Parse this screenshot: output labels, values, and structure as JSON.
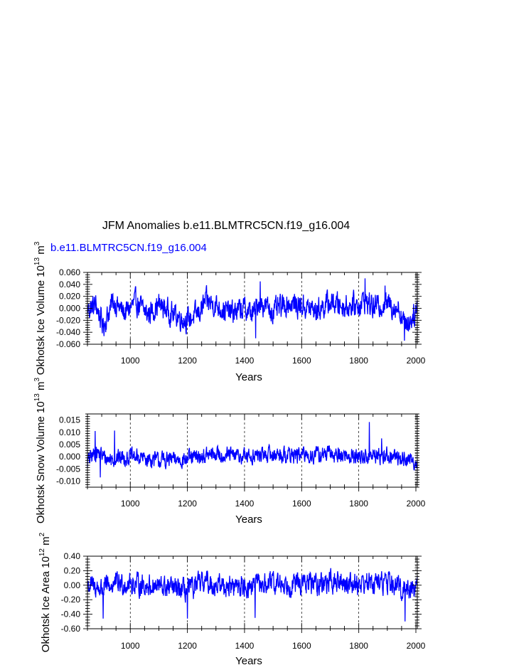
{
  "title": "JFM Anomalies b.e11.BLMTRC5CN.f19_g16.004",
  "series_label": "b.e11.BLMTRC5CN.f19_g16.004",
  "series_color": "#0000ff",
  "chart_data": [
    {
      "type": "line",
      "ylabel": "Okhotsk Ice Volume 10",
      "ylabel_exp": "13",
      "ylabel_unit": "m",
      "ylabel_unit_exp": "3",
      "xlabel": "Years",
      "xlim": [
        850,
        2005
      ],
      "ylim": [
        -0.06,
        0.06
      ],
      "xticks": [
        "1000",
        "1200",
        "1400",
        "1600",
        "1800",
        "2000"
      ],
      "xtick_values": [
        1000,
        1200,
        1400,
        1600,
        1800,
        2000
      ],
      "yticks": [
        "0.060",
        "0.040",
        "0.020",
        "0.000",
        "-0.020",
        "-0.040",
        "-0.060"
      ],
      "ytick_values": [
        0.06,
        0.04,
        0.02,
        0.0,
        -0.02,
        -0.04,
        -0.06
      ],
      "grid": "dashed vertical lines at x ticks",
      "series": [
        {
          "name": "b.e11.BLMTRC5CN.f19_g16.004",
          "x_start": 850,
          "x_end": 2005,
          "keypoints": [
            [
              850,
              -0.002
            ],
            [
              880,
              0.006
            ],
            [
              905,
              -0.03
            ],
            [
              940,
              0.012
            ],
            [
              980,
              -0.008
            ],
            [
              1020,
              0.01
            ],
            [
              1060,
              -0.01
            ],
            [
              1100,
              0.006
            ],
            [
              1150,
              -0.01
            ],
            [
              1200,
              -0.02
            ],
            [
              1240,
              -0.008
            ],
            [
              1265,
              0.012
            ],
            [
              1300,
              0.005
            ],
            [
              1350,
              -0.008
            ],
            [
              1400,
              0.0
            ],
            [
              1430,
              -0.01
            ],
            [
              1450,
              0.012
            ],
            [
              1500,
              -0.006
            ],
            [
              1550,
              0.008
            ],
            [
              1600,
              0.004
            ],
            [
              1650,
              -0.004
            ],
            [
              1700,
              0.01
            ],
            [
              1750,
              0.004
            ],
            [
              1800,
              0.006
            ],
            [
              1820,
              0.014
            ],
            [
              1850,
              0.002
            ],
            [
              1900,
              0.008
            ],
            [
              1940,
              0.0
            ],
            [
              1960,
              -0.025
            ],
            [
              1980,
              -0.02
            ],
            [
              2005,
              0.0
            ]
          ],
          "noise_amplitude": 0.022,
          "peaks": [
            [
              1822,
              0.05
            ],
            [
              1455,
              0.045
            ],
            [
              1439,
              -0.05
            ],
            [
              1960,
              -0.054
            ],
            [
              1892,
              0.038
            ]
          ]
        }
      ]
    },
    {
      "type": "line",
      "ylabel": "Okhotsk Snow Volume 10",
      "ylabel_exp": "13",
      "ylabel_unit": "m",
      "ylabel_unit_exp": "3",
      "xlabel": "Years",
      "xlim": [
        850,
        2005
      ],
      "ylim": [
        -0.0125,
        0.0175
      ],
      "xticks": [
        "1000",
        "1200",
        "1400",
        "1600",
        "1800",
        "2000"
      ],
      "xtick_values": [
        1000,
        1200,
        1400,
        1600,
        1800,
        2000
      ],
      "yticks": [
        "0.015",
        "0.010",
        "0.005",
        "0.000",
        "-0.005",
        "-0.010"
      ],
      "ytick_values": [
        0.015,
        0.01,
        0.005,
        0.0,
        -0.005,
        -0.01
      ],
      "grid": "dashed vertical lines at x ticks",
      "series": [
        {
          "name": "b.e11.BLMTRC5CN.f19_g16.004",
          "x_start": 850,
          "x_end": 2005,
          "keypoints": [
            [
              850,
              -0.002
            ],
            [
              880,
              0.002
            ],
            [
              920,
              -0.001
            ],
            [
              1000,
              0.0
            ],
            [
              1100,
              -0.0015
            ],
            [
              1200,
              -0.001
            ],
            [
              1300,
              0.001
            ],
            [
              1400,
              0.0
            ],
            [
              1500,
              0.001
            ],
            [
              1600,
              0.0005
            ],
            [
              1700,
              0.001
            ],
            [
              1800,
              0.0
            ],
            [
              1900,
              0.0005
            ],
            [
              1960,
              -0.001
            ],
            [
              2005,
              -0.002
            ]
          ],
          "noise_amplitude": 0.0038,
          "peaks": [
            [
              1837,
              0.0142
            ],
            [
              877,
              0.0105
            ],
            [
              945,
              0.0107
            ],
            [
              895,
              -0.0085
            ],
            [
              1880,
              0.0075
            ]
          ]
        }
      ]
    },
    {
      "type": "line",
      "ylabel": "Okhotsk Ice Area 10",
      "ylabel_exp": "12",
      "ylabel_unit": "m",
      "ylabel_unit_exp": "2",
      "xlabel": "Years",
      "xlim": [
        850,
        2005
      ],
      "ylim": [
        -0.6,
        0.4
      ],
      "xticks": [
        "1000",
        "1200",
        "1400",
        "1600",
        "1800",
        "2000"
      ],
      "xtick_values": [
        1000,
        1200,
        1400,
        1600,
        1800,
        2000
      ],
      "yticks": [
        "0.40",
        "0.20",
        "0.00",
        "-0.20",
        "-0.40",
        "-0.60"
      ],
      "ytick_values": [
        0.4,
        0.2,
        0.0,
        -0.2,
        -0.4,
        -0.6
      ],
      "grid": "dashed vertical lines at x ticks",
      "series": [
        {
          "name": "b.e11.BLMTRC5CN.f19_g16.004",
          "x_start": 850,
          "x_end": 2005,
          "keypoints": [
            [
              850,
              0.0
            ],
            [
              900,
              -0.05
            ],
            [
              950,
              0.02
            ],
            [
              1000,
              0.02
            ],
            [
              1100,
              -0.02
            ],
            [
              1200,
              -0.08
            ],
            [
              1260,
              0.05
            ],
            [
              1300,
              0.0
            ],
            [
              1400,
              -0.02
            ],
            [
              1500,
              0.02
            ],
            [
              1600,
              0.02
            ],
            [
              1700,
              0.04
            ],
            [
              1800,
              0.03
            ],
            [
              1900,
              0.04
            ],
            [
              1950,
              -0.05
            ],
            [
              2005,
              -0.02
            ]
          ],
          "noise_amplitude": 0.17,
          "peaks": [
            [
              1962,
              -0.5
            ],
            [
              1200,
              -0.46
            ],
            [
              1437,
              -0.45
            ],
            [
              905,
              -0.46
            ],
            [
              1270,
              0.2
            ]
          ]
        }
      ]
    }
  ]
}
